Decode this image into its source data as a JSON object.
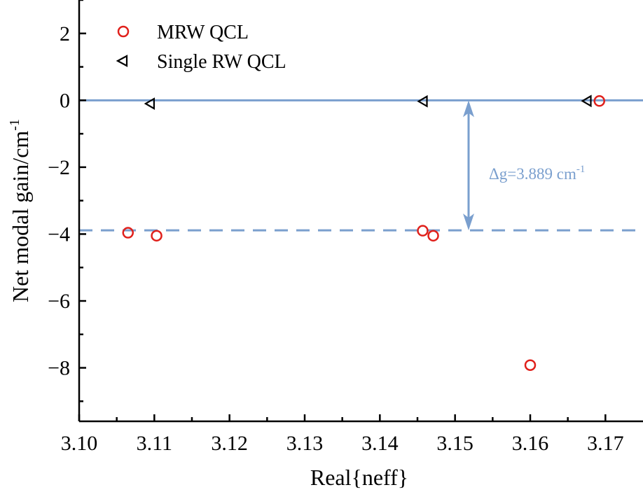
{
  "chart_data": {
    "type": "scatter",
    "xlabel": "Real{neff}",
    "ylabel": "Net modal gain/cm",
    "ylabel_sup": "-1",
    "xlim": [
      3.1,
      3.175
    ],
    "ylim": [
      -9.6,
      3
    ],
    "xticks": [
      "3.10",
      "3.11",
      "3.12",
      "3.13",
      "3.14",
      "3.15",
      "3.16",
      "3.17"
    ],
    "xtick_values": [
      3.1,
      3.11,
      3.12,
      3.13,
      3.14,
      3.15,
      3.16,
      3.17
    ],
    "yticks": [
      "2",
      "0",
      "−2",
      "−4",
      "−6",
      "−8"
    ],
    "ytick_values": [
      2,
      0,
      -2,
      -4,
      -6,
      -8
    ],
    "legend_position": "top-left",
    "series": [
      {
        "name": "MRW QCL",
        "marker": "circle",
        "color": "#e0201b",
        "x": [
          3.1065,
          3.1103,
          3.1457,
          3.1471,
          3.16,
          3.1692
        ],
        "y": [
          -3.96,
          -4.05,
          -3.9,
          -4.05,
          -7.92,
          -0.02
        ]
      },
      {
        "name": "Single RW QCL",
        "marker": "triangle-left",
        "color": "#000000",
        "x": [
          3.1094,
          3.1457,
          3.1675
        ],
        "y": [
          -0.1,
          -0.03,
          -0.02
        ]
      }
    ],
    "reference_lines": [
      {
        "y": 0,
        "style": "solid",
        "color": "#7a9fce"
      },
      {
        "y": -3.889,
        "style": "dashed",
        "color": "#7a9fce"
      }
    ],
    "annotation": {
      "text": "Δg=3.889 cm",
      "text_sup": "-1",
      "arrow_x": 3.1518,
      "from_y": 0,
      "to_y": -3.889,
      "color": "#7a9fce"
    }
  }
}
